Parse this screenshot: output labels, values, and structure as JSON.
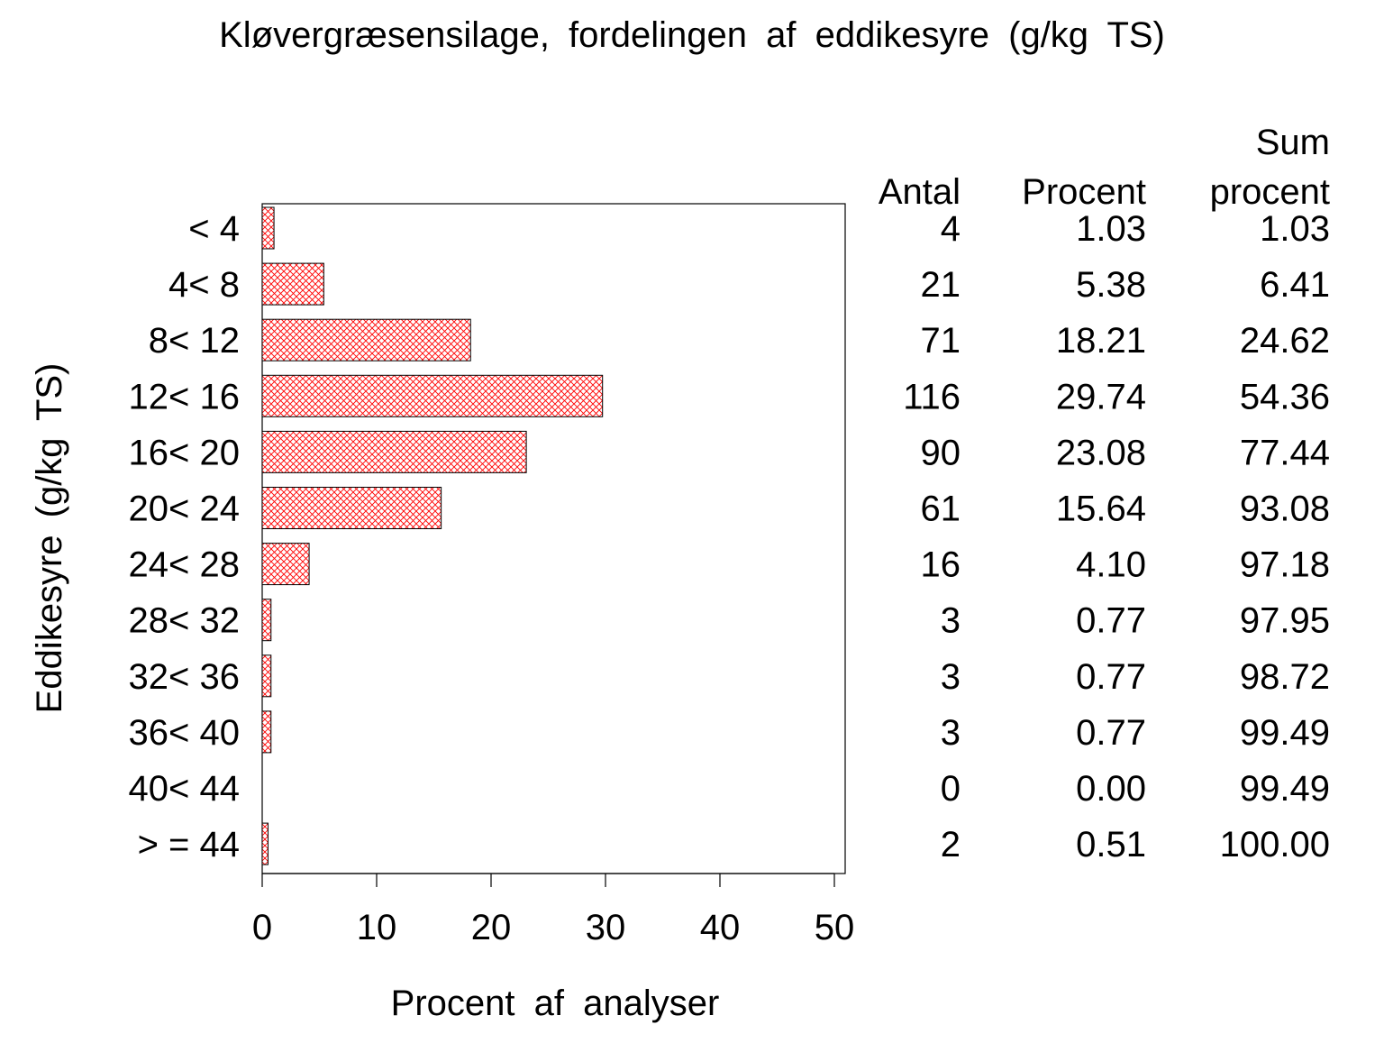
{
  "chart_data": {
    "type": "bar",
    "orientation": "horizontal",
    "title": "Kløvergræsensilage, fordelingen af eddikesyre (g/kg TS)",
    "xlabel": "Procent af analyser",
    "ylabel": "Eddikesyre (g/kg TS)",
    "xlim": [
      0,
      50
    ],
    "x_ticks": [
      "0",
      "10",
      "20",
      "30",
      "40",
      "50"
    ],
    "grid": false,
    "legend": "none",
    "bar_fill": "#ff0000",
    "bar_pattern": "crosshatch",
    "categories": [
      "< 4",
      "4< 8",
      "8< 12",
      "12< 16",
      "16< 20",
      "20< 24",
      "24< 28",
      "28< 32",
      "32< 36",
      "36< 40",
      "40< 44",
      "> = 44"
    ],
    "values": [
      1.03,
      5.38,
      18.21,
      29.74,
      23.08,
      15.64,
      4.1,
      0.77,
      0.77,
      0.77,
      0.0,
      0.51
    ],
    "table": {
      "headers": {
        "antal": "Antal",
        "procent": "Procent",
        "sum_line1": "Sum",
        "sum_line2": "procent"
      },
      "rows": [
        {
          "antal": "4",
          "procent": "1.03",
          "sum": "1.03"
        },
        {
          "antal": "21",
          "procent": "5.38",
          "sum": "6.41"
        },
        {
          "antal": "71",
          "procent": "18.21",
          "sum": "24.62"
        },
        {
          "antal": "116",
          "procent": "29.74",
          "sum": "54.36"
        },
        {
          "antal": "90",
          "procent": "23.08",
          "sum": "77.44"
        },
        {
          "antal": "61",
          "procent": "15.64",
          "sum": "93.08"
        },
        {
          "antal": "16",
          "procent": "4.10",
          "sum": "97.18"
        },
        {
          "antal": "3",
          "procent": "0.77",
          "sum": "97.95"
        },
        {
          "antal": "3",
          "procent": "0.77",
          "sum": "98.72"
        },
        {
          "antal": "3",
          "procent": "0.77",
          "sum": "99.49"
        },
        {
          "antal": "0",
          "procent": "0.00",
          "sum": "99.49"
        },
        {
          "antal": "2",
          "procent": "0.51",
          "sum": "100.00"
        }
      ]
    }
  }
}
